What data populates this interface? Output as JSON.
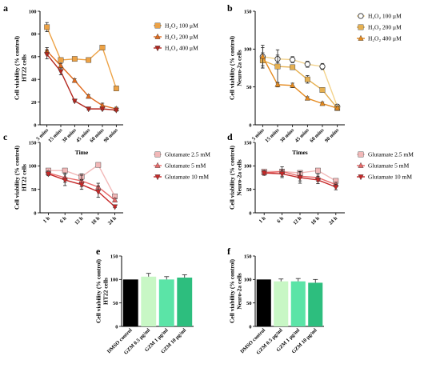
{
  "chart_data": [
    {
      "panel": "a",
      "type": "line",
      "ylabel": [
        "Cell viability (% control)",
        "HT22 cells"
      ],
      "xlabel": "Time",
      "ylim": [
        0,
        100
      ],
      "yticks": [
        0,
        20,
        40,
        60,
        80,
        100
      ],
      "categories": [
        "5 mins",
        "15 mins",
        "30 mins",
        "45 mins",
        "60 mins",
        "90 mins"
      ],
      "legend_position": "right",
      "series": [
        {
          "name": "H₂O₂ 100 μM",
          "color": "#EDA245",
          "marker": "square",
          "values": [
            86,
            57,
            58,
            57,
            68,
            32
          ],
          "errors": [
            4,
            1.5,
            1.5,
            1,
            2,
            2
          ]
        },
        {
          "name": "H₂O₂ 200 μM",
          "color": "#E06B1E",
          "marker": "triangle",
          "values": [
            65,
            52,
            39,
            25,
            17,
            14
          ],
          "errors": [
            3,
            2,
            1.5,
            1.5,
            2,
            1.5
          ]
        },
        {
          "name": "H₂O₂ 400 μM",
          "color": "#B3261E",
          "marker": "triangle-down",
          "values": [
            62,
            47,
            21,
            14,
            14,
            13
          ],
          "errors": [
            4,
            3,
            1,
            1,
            1,
            1
          ]
        }
      ]
    },
    {
      "panel": "b",
      "type": "line",
      "ylabel": [
        "Cell viability (% control)",
        "Neuro-2a cells"
      ],
      "xlabel": "Times",
      "ylim": [
        0,
        150
      ],
      "yticks": [
        0,
        50,
        100,
        150
      ],
      "categories": [
        "5 mins",
        "15 mins",
        "30 mins",
        "45 mins",
        "60 mins",
        "90 mins"
      ],
      "legend_position": "right",
      "series": [
        {
          "name": "H₂O₂ 100 μM",
          "color": "#F3D38C",
          "marker": "circle",
          "values": [
            90,
            87,
            86,
            80,
            77,
            24
          ],
          "errors": [
            12,
            5,
            4,
            4,
            4,
            3
          ]
        },
        {
          "name": "H₂O₂ 200 μM",
          "color": "#E6B050",
          "marker": "square",
          "values": [
            85,
            77,
            76,
            60,
            46,
            22
          ],
          "errors": [
            10,
            22,
            3,
            5,
            3,
            3
          ]
        },
        {
          "name": "H₂O₂ 400 μM",
          "color": "#E58A1F",
          "marker": "triangle",
          "values": [
            90,
            53,
            52,
            35,
            28,
            22
          ],
          "errors": [
            15,
            3,
            3,
            2,
            2,
            2
          ]
        }
      ]
    },
    {
      "panel": "c",
      "type": "line",
      "ylabel": [
        "Cell viability (% control)",
        "HT22 cells"
      ],
      "xlabel": "",
      "ylim": [
        0,
        150
      ],
      "yticks": [
        0,
        50,
        100,
        150
      ],
      "categories": [
        "1 h",
        "6 h",
        "12 h",
        "18 h",
        "24 h"
      ],
      "legend_position": "right",
      "series": [
        {
          "name": "Glutamate 2.5 mM",
          "color": "#F2B8B8",
          "marker": "square",
          "values": [
            90,
            90,
            77,
            102,
            35
          ],
          "errors": [
            4,
            4,
            6,
            3,
            3
          ]
        },
        {
          "name": "Glutamate 5 mM",
          "color": "#E86A6A",
          "marker": "triangle",
          "values": [
            85,
            75,
            68,
            55,
            27
          ],
          "errors": [
            4,
            10,
            12,
            8,
            4
          ]
        },
        {
          "name": "Glutamate 10 mM",
          "color": "#C62828",
          "marker": "triangle-down",
          "values": [
            83,
            70,
            60,
            45,
            13
          ],
          "errors": [
            4,
            12,
            10,
            12,
            2
          ]
        }
      ]
    },
    {
      "panel": "d",
      "type": "line",
      "ylabel": [
        "Cell viability (% control)",
        "Neuro-2a cells"
      ],
      "xlabel": "",
      "ylim": [
        0,
        150
      ],
      "yticks": [
        0,
        50,
        100,
        150
      ],
      "categories": [
        "1 h",
        "6 h",
        "12 h",
        "18 h",
        "24 h"
      ],
      "legend_position": "right",
      "series": [
        {
          "name": "Glutamate 2.5 mM",
          "color": "#F2B8B8",
          "marker": "square",
          "values": [
            88,
            88,
            85,
            90,
            68
          ],
          "errors": [
            4,
            3,
            4,
            3,
            3
          ]
        },
        {
          "name": "Glutamate 5 mM",
          "color": "#E86A6A",
          "marker": "triangle",
          "values": [
            85,
            88,
            78,
            75,
            60
          ],
          "errors": [
            4,
            10,
            10,
            8,
            5
          ]
        },
        {
          "name": "Glutamate 10 mM",
          "color": "#C62828",
          "marker": "triangle-down",
          "values": [
            85,
            83,
            75,
            70,
            55
          ],
          "errors": [
            5,
            8,
            12,
            8,
            6
          ]
        }
      ]
    },
    {
      "panel": "e",
      "type": "bar",
      "ylabel": [
        "Cell viability (% control)",
        "HT22 cells"
      ],
      "xlabel": "",
      "ylim": [
        0,
        150
      ],
      "yticks": [
        0,
        50,
        100,
        150
      ],
      "categories": [
        "DMSO control",
        "GZM 0.5 μg/ml",
        "GZM 1 μg/ml",
        "GZM 10 μg/ml"
      ],
      "values": [
        100,
        106,
        100,
        104
      ],
      "errors": [
        0,
        7,
        6,
        6
      ],
      "colors": [
        "#000000",
        "#C8F7C5",
        "#5BE4A7",
        "#2DBE7E"
      ]
    },
    {
      "panel": "f",
      "type": "bar",
      "ylabel": [
        "Cell viability (% control)",
        "Neuro-2a cells"
      ],
      "xlabel": "",
      "ylim": [
        0,
        150
      ],
      "yticks": [
        0,
        50,
        100,
        150
      ],
      "categories": [
        "DMSO control",
        "GZM 0.5 μg/ml",
        "GZM 1 μg/ml",
        "GZM 10 μg/ml"
      ],
      "values": [
        100,
        96,
        96,
        93
      ],
      "errors": [
        0,
        5,
        6,
        7
      ],
      "colors": [
        "#000000",
        "#C8F7C5",
        "#5BE4A7",
        "#2DBE7E"
      ]
    }
  ]
}
